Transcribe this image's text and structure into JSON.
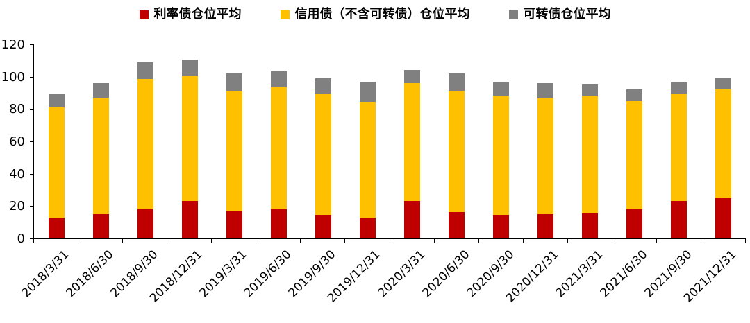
{
  "chart_data": {
    "type": "bar",
    "stacked": true,
    "title": "",
    "categories": [
      "2018/3/31",
      "2018/6/30",
      "2018/9/30",
      "2018/12/31",
      "2019/3/31",
      "2019/6/30",
      "2019/9/30",
      "2019/12/31",
      "2020/3/31",
      "2020/6/30",
      "2020/9/30",
      "2020/12/31",
      "2021/3/31",
      "2021/6/30",
      "2021/9/30",
      "2021/12/31"
    ],
    "series": [
      {
        "name": "利率债仓位平均",
        "color": "#C00000",
        "values": [
          13,
          15,
          18.5,
          23,
          17,
          18,
          14.5,
          13,
          23,
          16.5,
          14.5,
          15,
          15.5,
          18,
          23,
          25
        ]
      },
      {
        "name": "信用债（不含可转债）仓位平均",
        "color": "#FFC000",
        "values": [
          68,
          72,
          80,
          77.5,
          74,
          75.5,
          75,
          71.5,
          73,
          75,
          74,
          71.5,
          72.5,
          67,
          66.5,
          67
        ]
      },
      {
        "name": "可转债仓位平均",
        "color": "#808080",
        "values": [
          8,
          9,
          10.5,
          10,
          11,
          10,
          9.5,
          12.5,
          8,
          10.5,
          8,
          9.5,
          7.5,
          7,
          7,
          7.5
        ]
      }
    ],
    "xlabel": "",
    "ylabel": "",
    "ylim": [
      0,
      120
    ],
    "yticks": [
      0,
      20,
      40,
      60,
      80,
      100,
      120
    ],
    "legend_position": "top",
    "grid": false,
    "axis_color": "#000000",
    "background_color": "#FFFFFF"
  }
}
